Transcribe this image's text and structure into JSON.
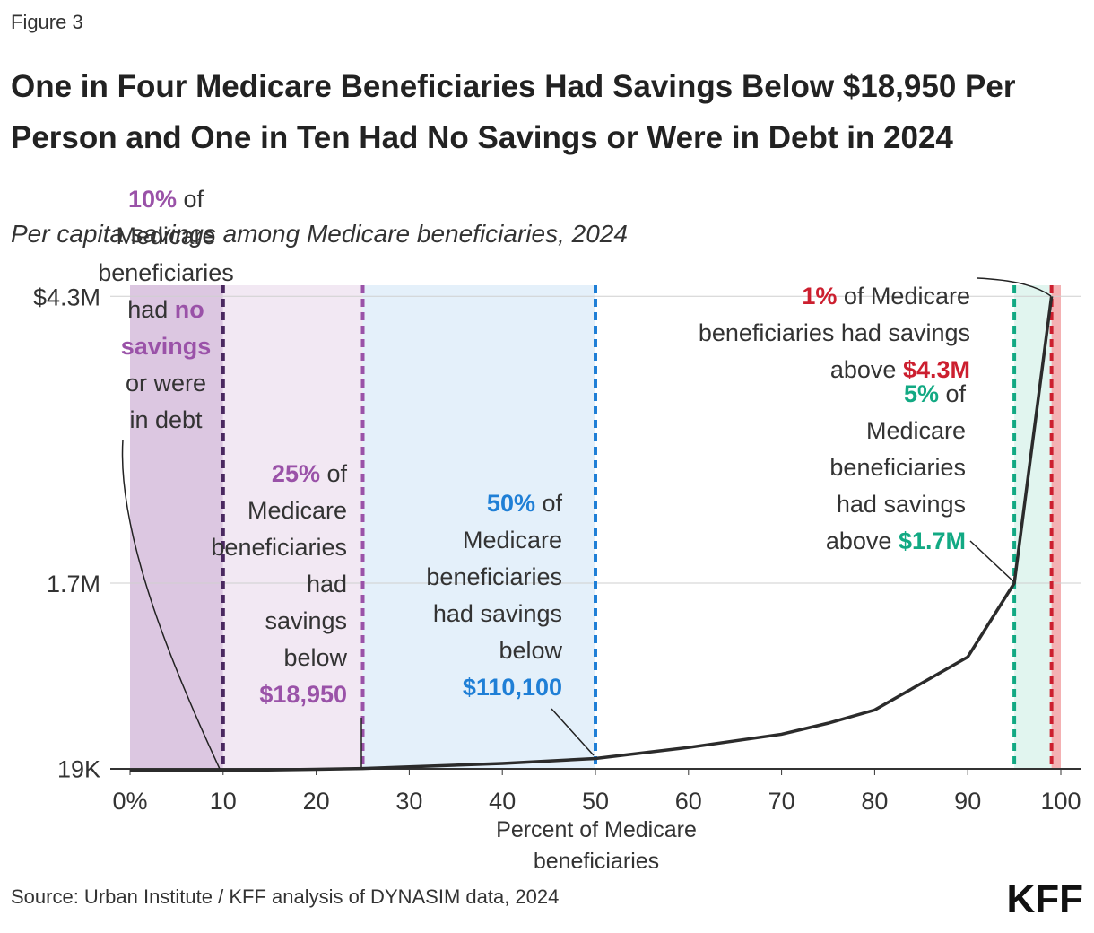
{
  "figure_label": "Figure 3",
  "source": "Source: Urban Institute / KFF analysis of DYNASIM data, 2024",
  "logo": "KFF",
  "chart_data": {
    "type": "line",
    "title": "One in Four Medicare Beneficiaries Had Savings Below $18,950 Per Person and One in Ten Had No Savings or Were in Debt in 2024",
    "subtitle": "Per capita savings among Medicare beneficiaries, 2024",
    "x_label": "Percent of Medicare beneficiaries",
    "x": [
      0,
      10,
      20,
      25,
      30,
      40,
      50,
      60,
      70,
      75,
      80,
      90,
      95,
      99
    ],
    "series": [
      {
        "color": "#2b2b2b",
        "values": [
          0,
          0,
          12000,
          18950,
          35000,
          65000,
          110100,
          210000,
          330000,
          430000,
          550000,
          1030000,
          1700000,
          4300000
        ]
      }
    ],
    "xlim": [
      0,
      100
    ],
    "xticks": [
      {
        "value": 0,
        "label": "0%"
      },
      10,
      20,
      30,
      40,
      50,
      60,
      70,
      80,
      90,
      100
    ],
    "ylim": [
      0,
      4400000
    ],
    "yticks": [
      {
        "value": 19000,
        "label": "19K"
      },
      {
        "value": 1700000,
        "label": "1.7M"
      },
      {
        "value": 4300000,
        "label": "$4.3M"
      }
    ],
    "grid": true,
    "shaded_regions": [
      {
        "from": 0,
        "to": 10,
        "color": "#dcc7e1"
      },
      {
        "from": 10,
        "to": 25,
        "color": "#f2e8f3"
      },
      {
        "from": 25,
        "to": 50,
        "color": "#e4f0fa"
      },
      {
        "from": 95,
        "to": 99,
        "color": "#e1f5ef"
      },
      {
        "from": 99,
        "to": 100,
        "color": "#f4b1b3"
      }
    ],
    "reference_lines": [
      {
        "x": 10,
        "color": "#4a2860"
      },
      {
        "x": 25,
        "color": "#9a52a8"
      },
      {
        "x": 50,
        "color": "#1f7fd6"
      },
      {
        "x": 95,
        "color": "#12a983"
      },
      {
        "x": 99,
        "color": "#cc1f2f"
      }
    ],
    "annotations": [
      {
        "color": "#9a52a8",
        "lines": [
          [
            {
              "text": "10%",
              "accent": true
            },
            {
              "text": " of"
            }
          ],
          [
            {
              "text": "Medicare"
            }
          ],
          [
            {
              "text": "beneficiaries"
            }
          ],
          [
            {
              "text": "had "
            },
            {
              "text": "no",
              "accent": true
            }
          ],
          [
            {
              "text": "savings",
              "accent": true
            }
          ],
          [
            {
              "text": "or were"
            }
          ],
          [
            {
              "text": "in debt"
            }
          ]
        ]
      },
      {
        "color": "#9a52a8",
        "lines": [
          [
            {
              "text": "25%",
              "accent": true
            },
            {
              "text": " of"
            }
          ],
          [
            {
              "text": "Medicare"
            }
          ],
          [
            {
              "text": "beneficiaries"
            }
          ],
          [
            {
              "text": "had"
            }
          ],
          [
            {
              "text": "savings"
            }
          ],
          [
            {
              "text": "below"
            }
          ],
          [
            {
              "text": "$18,950",
              "accent": true
            }
          ]
        ]
      },
      {
        "color": "#1f7fd6",
        "lines": [
          [
            {
              "text": "50%",
              "accent": true
            },
            {
              "text": " of"
            }
          ],
          [
            {
              "text": "Medicare"
            }
          ],
          [
            {
              "text": "beneficiaries"
            }
          ],
          [
            {
              "text": "had savings"
            }
          ],
          [
            {
              "text": "below"
            }
          ],
          [
            {
              "text": "$110,100",
              "accent": true
            }
          ]
        ]
      },
      {
        "color": "#12a983",
        "lines": [
          [
            {
              "text": "5%",
              "accent": true
            },
            {
              "text": " of"
            }
          ],
          [
            {
              "text": "Medicare"
            }
          ],
          [
            {
              "text": "beneficiaries"
            }
          ],
          [
            {
              "text": "had savings"
            }
          ],
          [
            {
              "text": "above "
            },
            {
              "text": "$1.7M",
              "accent": true
            }
          ]
        ]
      },
      {
        "color": "#cc1f2f",
        "lines": [
          [
            {
              "text": "1%",
              "accent": true
            },
            {
              "text": " of Medicare"
            }
          ],
          [
            {
              "text": "beneficiaries had savings"
            }
          ],
          [
            {
              "text": "above "
            },
            {
              "text": "$4.3M",
              "accent": true
            }
          ]
        ]
      }
    ]
  }
}
